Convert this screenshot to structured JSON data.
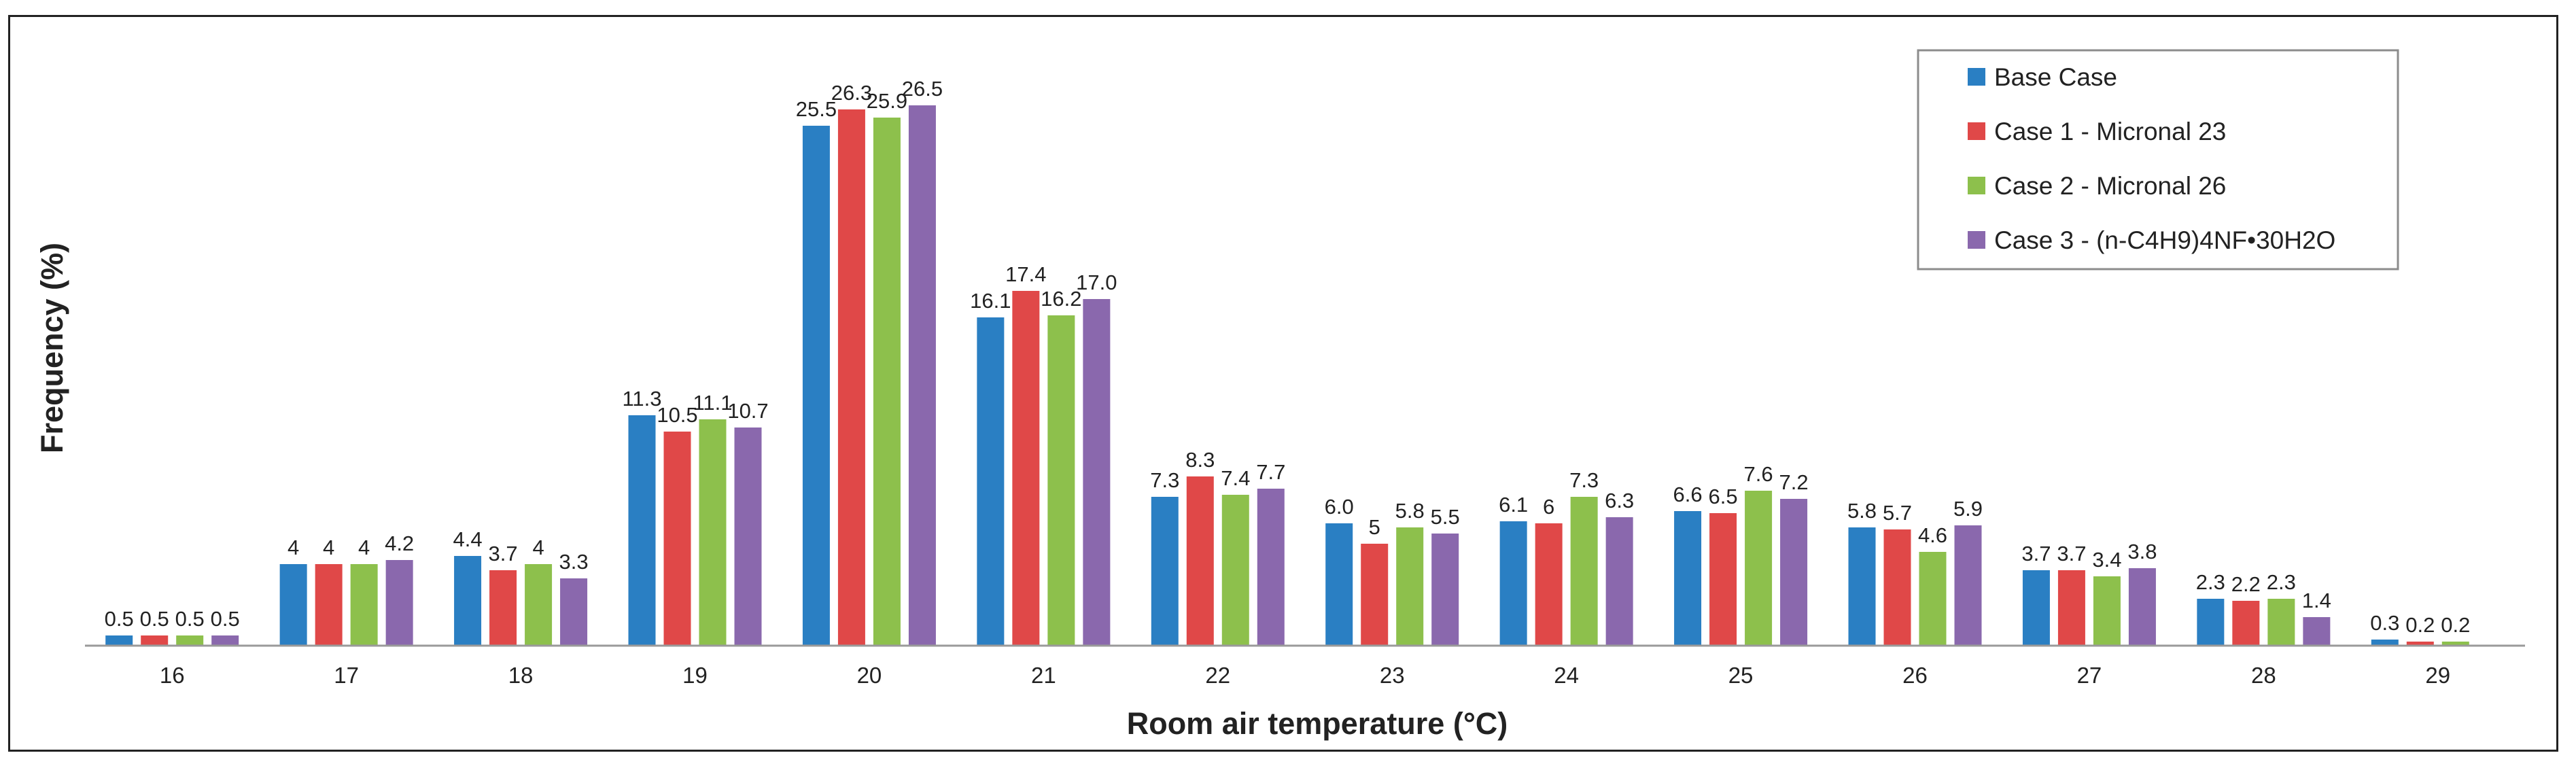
{
  "chart_data": {
    "type": "bar",
    "title": "",
    "xlabel": "Room air temperature (°C)",
    "ylabel": "Frequency (%)",
    "ylim": [
      0,
      27
    ],
    "grid": false,
    "legend_position": "top-right",
    "categories": [
      "16",
      "17",
      "18",
      "19",
      "20",
      "21",
      "22",
      "23",
      "24",
      "25",
      "26",
      "27",
      "28",
      "29"
    ],
    "series": [
      {
        "name": "Base Case",
        "color": "#2a7fc3",
        "values": [
          0.5,
          4,
          4.4,
          11.3,
          25.5,
          16.1,
          7.3,
          6.0,
          6.1,
          6.6,
          5.8,
          3.7,
          2.3,
          0.3
        ],
        "labels": [
          "0.5",
          "4",
          "4.4",
          "11.3",
          "25.5",
          "16.1",
          "7.3",
          "6.0",
          "6.1",
          "6.6",
          "5.8",
          "3.7",
          "2.3",
          "0.3"
        ]
      },
      {
        "name": "Case 1 - Micronal 23",
        "color": "#e04848",
        "values": [
          0.5,
          4,
          3.7,
          10.5,
          26.3,
          17.4,
          8.3,
          5,
          6,
          6.5,
          5.7,
          3.7,
          2.2,
          0.2
        ],
        "labels": [
          "0.5",
          "4",
          "3.7",
          "10.5",
          "26.3",
          "17.4",
          "8.3",
          "5",
          "6",
          "6.5",
          "5.7",
          "3.7",
          "2.2",
          "0.2"
        ]
      },
      {
        "name": "Case 2 - Micronal 26",
        "color": "#8dc04c",
        "values": [
          0.5,
          4,
          4,
          11.1,
          25.9,
          16.2,
          7.4,
          5.8,
          7.3,
          7.6,
          4.6,
          3.4,
          2.3,
          0.2
        ],
        "labels": [
          "0.5",
          "4",
          "4",
          "11.1",
          "25.9",
          "16.2",
          "7.4",
          "5.8",
          "7.3",
          "7.6",
          "4.6",
          "3.4",
          "2.3",
          "0.2"
        ]
      },
      {
        "name": "Case 3 - (n-C4H9)4NF•30H2O",
        "color": "#8a68ad",
        "values": [
          0.5,
          4.2,
          3.3,
          10.7,
          26.5,
          17.0,
          7.7,
          5.5,
          6.3,
          7.2,
          5.9,
          3.8,
          1.4,
          null
        ],
        "labels": [
          "0.5",
          "4.2",
          "3.3",
          "10.7",
          "26.5",
          "17.0",
          "7.7",
          "5.5",
          "6.3",
          "7.2",
          "5.9",
          "3.8",
          "1.4",
          ""
        ]
      }
    ]
  }
}
